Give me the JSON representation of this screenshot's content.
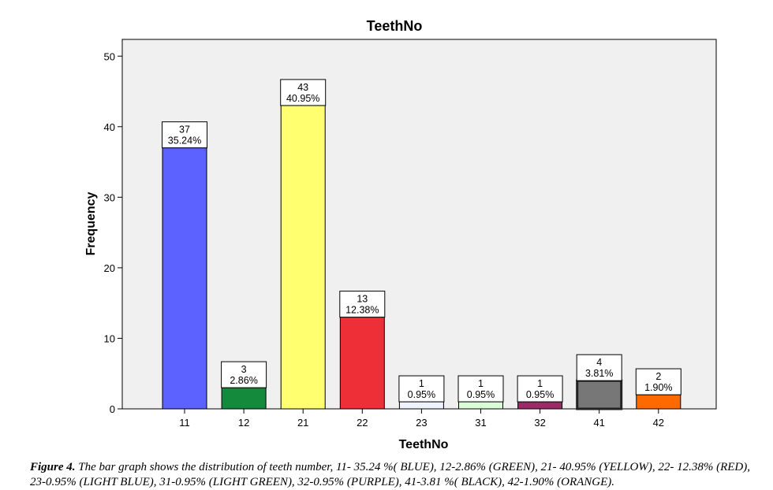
{
  "chart_data": {
    "type": "bar",
    "title": "TeethNo",
    "xlabel": "TeethNo",
    "ylabel": "Frequency",
    "ylim": [
      0,
      52
    ],
    "yticks": [
      0,
      10,
      20,
      30,
      40,
      50
    ],
    "categories": [
      "11",
      "12",
      "21",
      "22",
      "23",
      "31",
      "32",
      "41",
      "42"
    ],
    "values": [
      37,
      3,
      43,
      13,
      1,
      1,
      1,
      4,
      2
    ],
    "percent_labels": [
      "35.24%",
      "2.86%",
      "40.95%",
      "12.38%",
      "0.95%",
      "0.95%",
      "0.95%",
      "3.81%",
      "1.90%"
    ],
    "colors": [
      "#5b62ff",
      "#138a3c",
      "#ffff70",
      "#ee2f38",
      "#eef2ff",
      "#d9ffd6",
      "#9b2a66",
      "#777777",
      "#ff6a00"
    ],
    "grid": false,
    "legend": "none",
    "plot_background": "#f0f0f0"
  },
  "caption": {
    "lead": "Figure 4.",
    "text": " The bar graph shows the distribution of teeth number, 11- 35.24 %( BLUE), 12-2.86% (GREEN), 21- 40.95% (YELLOW), 22- 12.38% (RED), 23-0.95% (LIGHT BLUE), 31-0.95% (LIGHT GREEN), 32-0.95% (PURPLE), 41-3.81 %( BLACK), 42-1.90% (ORANGE)."
  }
}
